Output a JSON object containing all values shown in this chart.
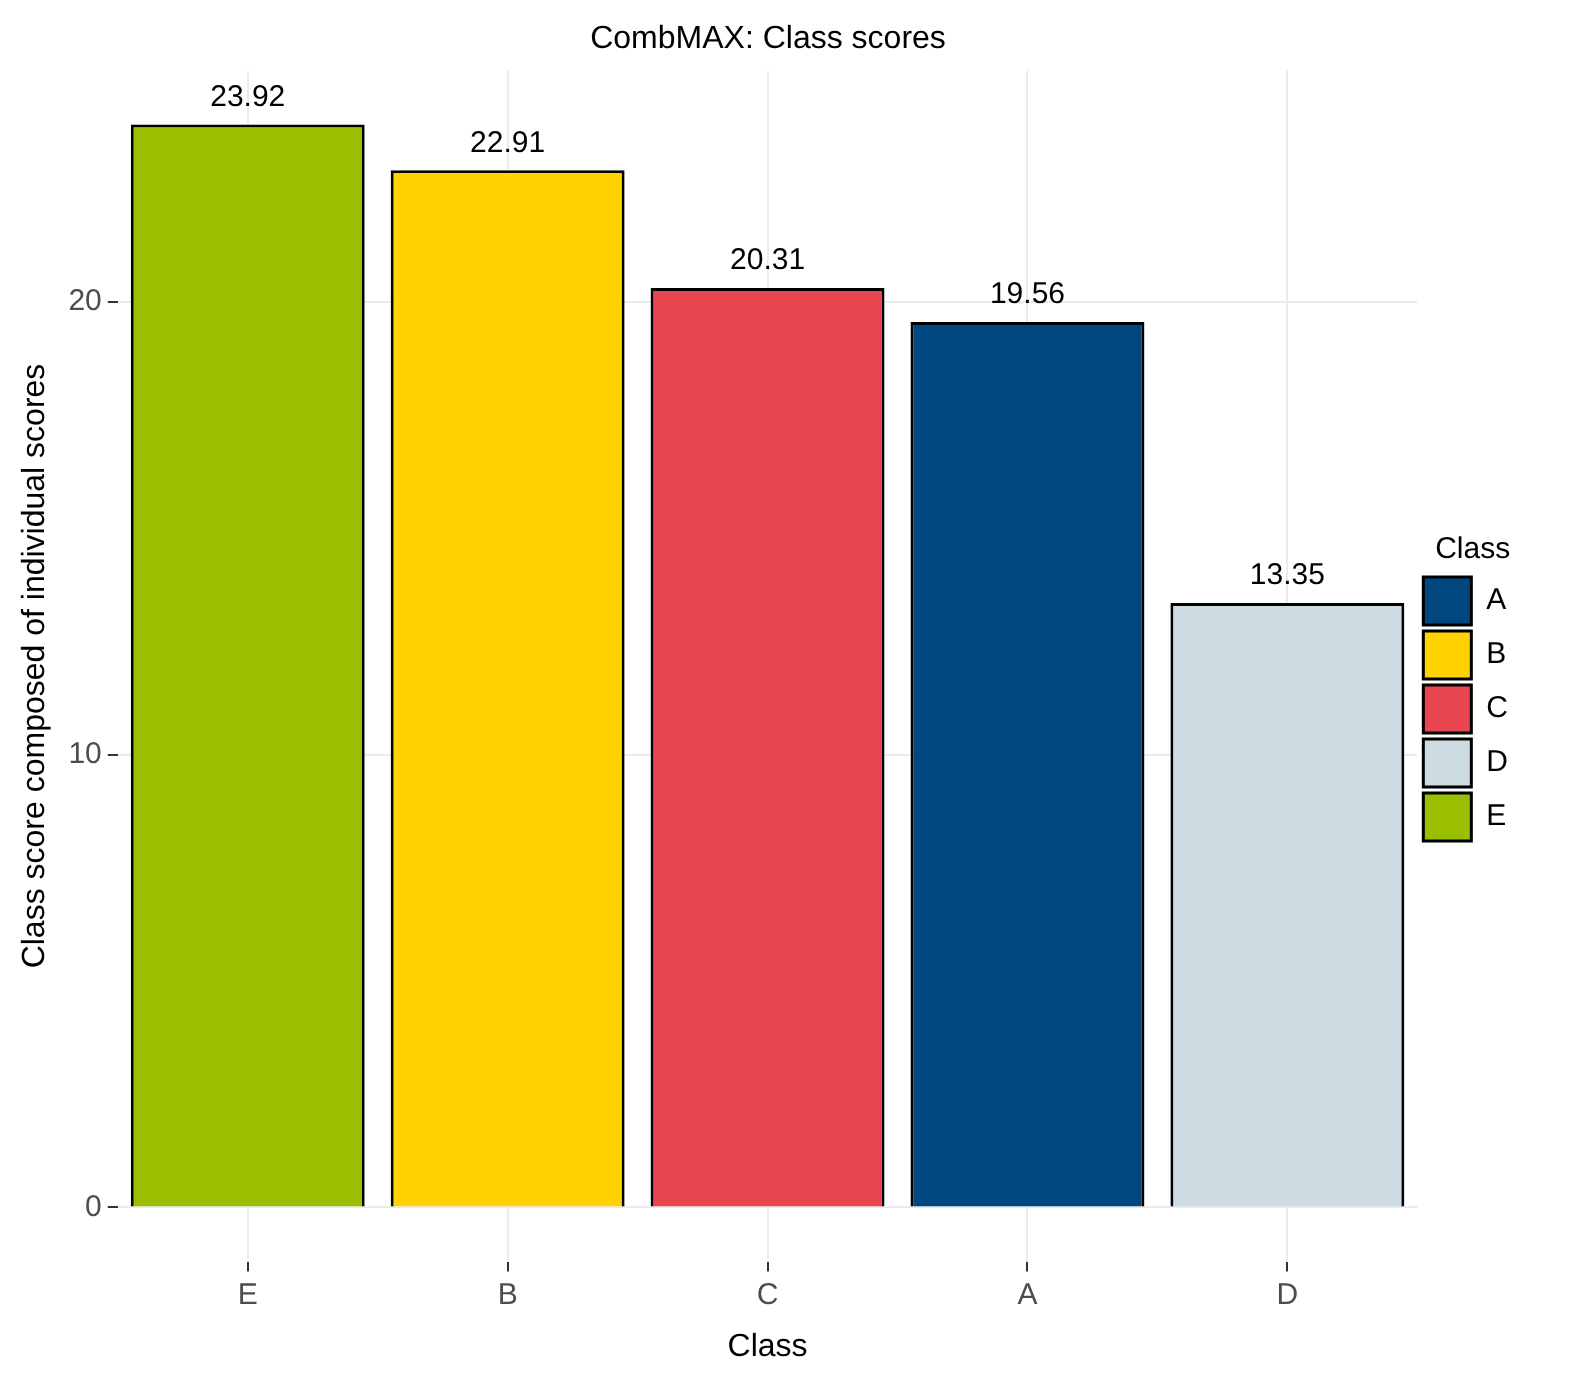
{
  "chart_data": {
    "type": "bar",
    "title": "CombMAX: Class scores",
    "xlabel": "Class",
    "ylabel": "Class score composed of individual scores",
    "legend_title": "Class",
    "categories": [
      "E",
      "B",
      "C",
      "A",
      "D"
    ],
    "series": [
      {
        "name": "A",
        "color": "#00467f",
        "values": [
          null,
          null,
          null,
          19.56,
          null
        ]
      },
      {
        "name": "B",
        "color": "#ffd200",
        "values": [
          null,
          22.91,
          null,
          null,
          null
        ]
      },
      {
        "name": "C",
        "color": "#e84550",
        "values": [
          null,
          null,
          20.31,
          null,
          null
        ]
      },
      {
        "name": "D",
        "color": "#cddbe3",
        "values": [
          null,
          null,
          null,
          null,
          13.35
        ]
      },
      {
        "name": "E",
        "color": "#9abe00",
        "values": [
          23.92,
          null,
          null,
          null,
          null
        ]
      }
    ],
    "ylim": [
      -1.196,
      25.116
    ],
    "yticks": [
      0,
      10,
      20
    ],
    "grid": true,
    "legend": "right",
    "data_labels": true
  }
}
